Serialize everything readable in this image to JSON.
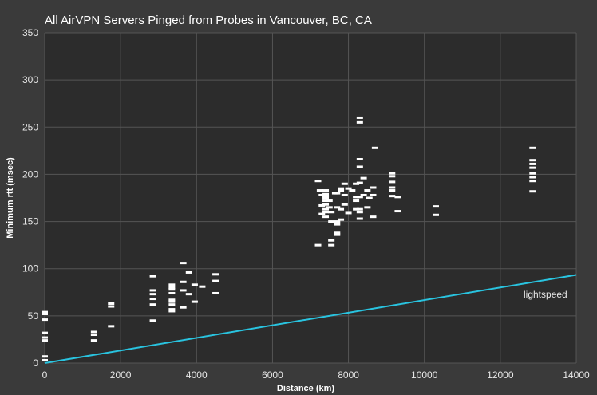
{
  "chart_data": {
    "type": "scatter",
    "title": "All AirVPN Servers Pinged from Probes in Vancouver, BC, CA",
    "xlabel": "Distance (km)",
    "ylabel": "Minimum rtt (msec)",
    "xlim": [
      0,
      14000
    ],
    "ylim": [
      0,
      350
    ],
    "x_ticks": [
      0,
      2000,
      4000,
      6000,
      8000,
      10000,
      12000,
      14000
    ],
    "y_ticks": [
      0,
      50,
      100,
      150,
      200,
      250,
      300,
      350
    ],
    "grid": true,
    "colors": {
      "points": "#ffffff",
      "line": "#29c4e0",
      "background": "#3a3a3a",
      "plot": "#2c2c2c"
    },
    "series": [
      {
        "marker": "dash",
        "points": [
          [
            0,
            3
          ],
          [
            0,
            7
          ],
          [
            0,
            24
          ],
          [
            0,
            27
          ],
          [
            0,
            32
          ],
          [
            0,
            46
          ],
          [
            0,
            52
          ],
          [
            0,
            54
          ],
          [
            1300,
            24
          ],
          [
            1300,
            30
          ],
          [
            1300,
            33
          ],
          [
            1750,
            39
          ],
          [
            1750,
            60
          ],
          [
            1750,
            63
          ],
          [
            2850,
            45
          ],
          [
            2850,
            62
          ],
          [
            2850,
            68
          ],
          [
            2850,
            73
          ],
          [
            2850,
            77
          ],
          [
            2850,
            92
          ],
          [
            3350,
            55
          ],
          [
            3350,
            57
          ],
          [
            3350,
            62
          ],
          [
            3350,
            65
          ],
          [
            3350,
            67
          ],
          [
            3350,
            74
          ],
          [
            3350,
            78
          ],
          [
            3350,
            80
          ],
          [
            3350,
            83
          ],
          [
            3650,
            59
          ],
          [
            3650,
            77
          ],
          [
            3650,
            86
          ],
          [
            3650,
            106
          ],
          [
            3800,
            73
          ],
          [
            3800,
            96
          ],
          [
            3950,
            65
          ],
          [
            3950,
            83
          ],
          [
            4150,
            81
          ],
          [
            4500,
            74
          ],
          [
            4500,
            87
          ],
          [
            4500,
            94
          ],
          [
            7200,
            125
          ],
          [
            7200,
            193
          ],
          [
            7250,
            183
          ],
          [
            7300,
            158
          ],
          [
            7300,
            167
          ],
          [
            7300,
            178
          ],
          [
            7400,
            155
          ],
          [
            7400,
            160
          ],
          [
            7400,
            163
          ],
          [
            7400,
            168
          ],
          [
            7400,
            172
          ],
          [
            7400,
            175
          ],
          [
            7400,
            177
          ],
          [
            7400,
            179
          ],
          [
            7400,
            183
          ],
          [
            7500,
            165
          ],
          [
            7500,
            172
          ],
          [
            7550,
            125
          ],
          [
            7550,
            130
          ],
          [
            7550,
            150
          ],
          [
            7550,
            160
          ],
          [
            7650,
            180
          ],
          [
            7700,
            136
          ],
          [
            7700,
            138
          ],
          [
            7700,
            147
          ],
          [
            7700,
            150
          ],
          [
            7700,
            165
          ],
          [
            7700,
            180
          ],
          [
            7800,
            152
          ],
          [
            7800,
            163
          ],
          [
            7800,
            183
          ],
          [
            7800,
            185
          ],
          [
            7900,
            168
          ],
          [
            7900,
            178
          ],
          [
            7900,
            190
          ],
          [
            8000,
            159
          ],
          [
            8000,
            185
          ],
          [
            8100,
            183
          ],
          [
            8200,
            163
          ],
          [
            8200,
            172
          ],
          [
            8200,
            176
          ],
          [
            8200,
            190
          ],
          [
            8300,
            153
          ],
          [
            8300,
            160
          ],
          [
            8300,
            163
          ],
          [
            8300,
            176
          ],
          [
            8300,
            191
          ],
          [
            8300,
            208
          ],
          [
            8300,
            216
          ],
          [
            8300,
            255
          ],
          [
            8300,
            260
          ],
          [
            8400,
            178
          ],
          [
            8400,
            196
          ],
          [
            8500,
            165
          ],
          [
            8500,
            183
          ],
          [
            8550,
            175
          ],
          [
            8650,
            155
          ],
          [
            8650,
            178
          ],
          [
            8650,
            186
          ],
          [
            8700,
            228
          ],
          [
            9150,
            177
          ],
          [
            9150,
            183
          ],
          [
            9150,
            186
          ],
          [
            9150,
            192
          ],
          [
            9150,
            198
          ],
          [
            9150,
            201
          ],
          [
            9300,
            161
          ],
          [
            9300,
            176
          ],
          [
            10300,
            157
          ],
          [
            10300,
            166
          ],
          [
            12850,
            182
          ],
          [
            12850,
            193
          ],
          [
            12850,
            197
          ],
          [
            12850,
            201
          ],
          [
            12850,
            207
          ],
          [
            12850,
            211
          ],
          [
            12850,
            215
          ],
          [
            12850,
            228
          ]
        ]
      },
      {
        "name": "lightspeed",
        "type": "line",
        "x": [
          0,
          14000
        ],
        "y": [
          0,
          93.4
        ]
      }
    ]
  }
}
